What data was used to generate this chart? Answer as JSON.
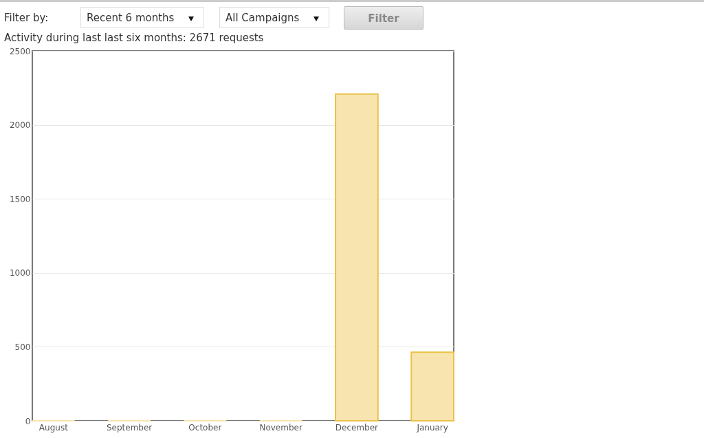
{
  "chart_data": {
    "type": "bar",
    "title": "Activity during last last six months: 2671 requests",
    "annotations": [
      "Filter by:",
      "Recent 6 months",
      "All Campaigns",
      "Filter"
    ],
    "categories": [
      "August",
      "September",
      "October",
      "November",
      "December",
      "January"
    ],
    "values": [
      0,
      0,
      0,
      0,
      2208,
      463
    ],
    "color": "#f7e4ae",
    "ylim": [
      0,
      2500
    ],
    "yticks": [
      0,
      500,
      1000,
      1500,
      2000,
      2500
    ],
    "grid": "y"
  }
}
